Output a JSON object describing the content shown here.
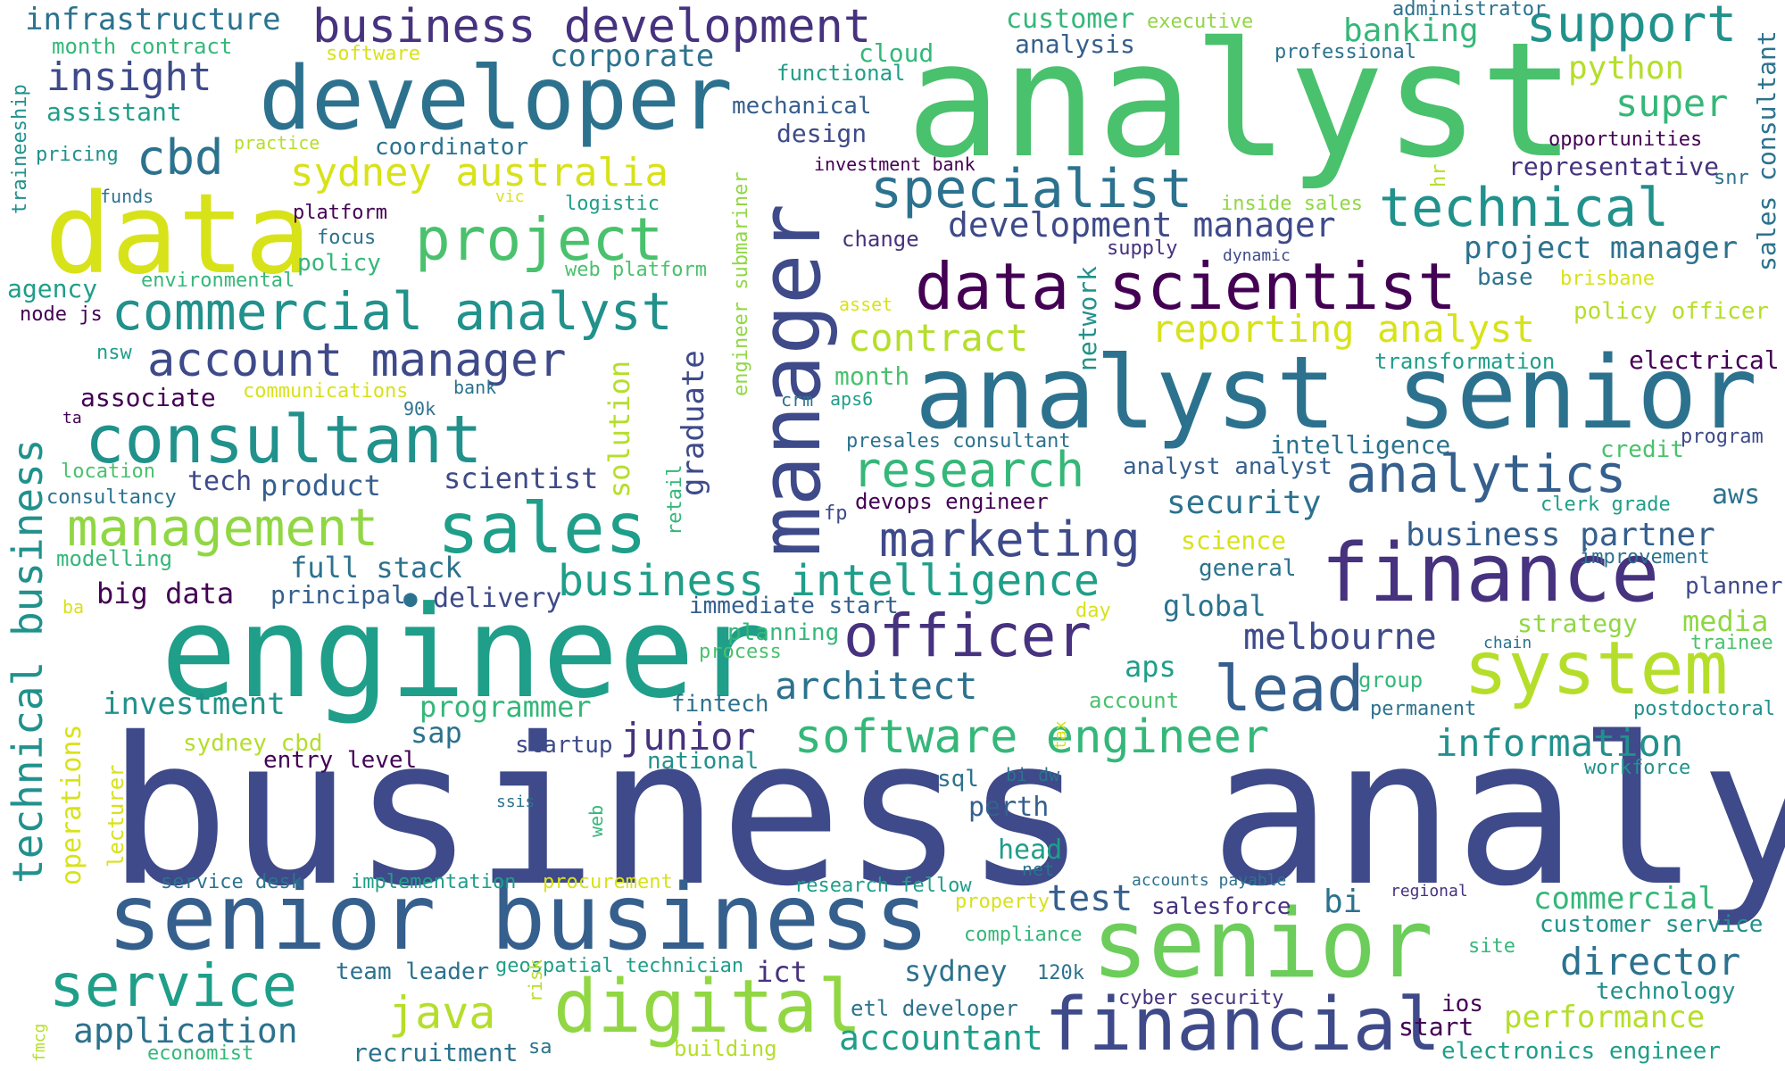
{
  "palette": {
    "purple": "#440154",
    "indigo": "#46327e",
    "navy": "#3e4a89",
    "blue": "#355f8d",
    "steel": "#2c728e",
    "teal": "#21918c",
    "sea": "#1f9e89",
    "green": "#35b779",
    "leaf": "#4ac16d",
    "lime": "#90d743",
    "chartreuse": "#b5de2b",
    "yellow": "#d8e219"
  },
  "words": [
    {
      "key": "w1",
      "text": "business analyst",
      "color": "#3e4a89"
    },
    {
      "key": "w2",
      "text": "analyst",
      "color": "#4ac16d"
    },
    {
      "key": "w3",
      "text": "engineer",
      "color": "#1f9e89"
    },
    {
      "key": "w4",
      "text": "senior business",
      "color": "#355f8d"
    },
    {
      "key": "w5",
      "text": "analyst senior",
      "color": "#2c728e"
    },
    {
      "key": "w6",
      "text": "developer",
      "color": "#2c728e"
    },
    {
      "key": "w7",
      "text": "manager",
      "color": "#3e4a89"
    },
    {
      "key": "w8",
      "text": "data",
      "color": "#d8e219"
    },
    {
      "key": "w9",
      "text": "senior",
      "color": "#6ccd5a"
    },
    {
      "key": "w10",
      "text": "finance",
      "color": "#46327e"
    },
    {
      "key": "w11",
      "text": "data scientist",
      "color": "#440154"
    },
    {
      "key": "w12",
      "text": "financial",
      "color": "#3e4a89"
    },
    {
      "key": "w13",
      "text": "system",
      "color": "#b5de2b"
    },
    {
      "key": "w14",
      "text": "digital",
      "color": "#90d743"
    },
    {
      "key": "w15",
      "text": "service",
      "color": "#1f9e89"
    },
    {
      "key": "w16",
      "text": "sales",
      "color": "#1f9e89"
    },
    {
      "key": "w17",
      "text": "consultant",
      "color": "#21918c"
    },
    {
      "key": "w18",
      "text": "business development",
      "color": "#46327e"
    },
    {
      "key": "w19",
      "text": "project",
      "color": "#4ac16d"
    },
    {
      "key": "w20",
      "text": "commercial analyst",
      "color": "#21918c"
    },
    {
      "key": "w21",
      "text": "management",
      "color": "#90d743"
    },
    {
      "key": "w22",
      "text": "officer",
      "color": "#46327e"
    },
    {
      "key": "w23",
      "text": "lead",
      "color": "#355f8d"
    },
    {
      "key": "w24",
      "text": "technical",
      "color": "#21918c"
    },
    {
      "key": "w25",
      "text": "support",
      "color": "#21918c"
    },
    {
      "key": "w26",
      "text": "specialist",
      "color": "#2c728e"
    },
    {
      "key": "w27",
      "text": "analytics",
      "color": "#355f8d"
    },
    {
      "key": "w28",
      "text": "marketing",
      "color": "#3e4a89"
    },
    {
      "key": "w29",
      "text": "business intelligence",
      "color": "#1f9e89"
    },
    {
      "key": "w30",
      "text": "research",
      "color": "#35b779"
    },
    {
      "key": "w31",
      "text": "software engineer",
      "color": "#35b779"
    },
    {
      "key": "w32",
      "text": "technical business",
      "color": "#21918c"
    },
    {
      "key": "w33",
      "text": "account manager",
      "color": "#3e4a89"
    },
    {
      "key": "w34",
      "text": "cbd",
      "color": "#2c728e"
    },
    {
      "key": "w35",
      "text": "insight",
      "color": "#3e4a89"
    },
    {
      "key": "w36",
      "text": "sydney australia",
      "color": "#d8e219"
    },
    {
      "key": "w37",
      "text": "reporting analyst",
      "color": "#d8e219"
    },
    {
      "key": "w38",
      "text": "contract",
      "color": "#b5de2b"
    },
    {
      "key": "w39",
      "text": "development manager",
      "color": "#3e4a89"
    },
    {
      "key": "w40",
      "text": "information",
      "color": "#21918c"
    },
    {
      "key": "w41",
      "text": "architect",
      "color": "#2c728e"
    },
    {
      "key": "w42",
      "text": "melbourne",
      "color": "#3e4a89"
    },
    {
      "key": "w43",
      "text": "director",
      "color": "#2c728e"
    },
    {
      "key": "w44",
      "text": "accountant",
      "color": "#1f9e89"
    },
    {
      "key": "w45",
      "text": "java",
      "color": "#b5de2b"
    },
    {
      "key": "w46",
      "text": "junior",
      "color": "#46327e"
    },
    {
      "key": "w47",
      "text": "application",
      "color": "#2c728e"
    },
    {
      "key": "w48",
      "text": "commercial",
      "color": "#35b779"
    },
    {
      "key": "w49",
      "text": "performance",
      "color": "#b5de2b"
    },
    {
      "key": "w50",
      "text": "security",
      "color": "#2c728e"
    },
    {
      "key": "w51",
      "text": "business partner",
      "color": "#355f8d"
    },
    {
      "key": "w52",
      "text": "project manager",
      "color": "#2c728e"
    },
    {
      "key": "w53",
      "text": "super",
      "color": "#35b779"
    },
    {
      "key": "w54",
      "text": "python",
      "color": "#b5de2b"
    },
    {
      "key": "w55",
      "text": "banking",
      "color": "#35b779"
    },
    {
      "key": "w56",
      "text": "corporate",
      "color": "#2c728e"
    },
    {
      "key": "w57",
      "text": "infrastructure",
      "color": "#2c728e"
    },
    {
      "key": "w58",
      "text": "investment",
      "color": "#21918c"
    },
    {
      "key": "w59",
      "text": "programmer",
      "color": "#35b779"
    },
    {
      "key": "w60",
      "text": "full stack",
      "color": "#2c728e"
    },
    {
      "key": "w61",
      "text": "big data",
      "color": "#440154"
    },
    {
      "key": "w62",
      "text": "delivery",
      "color": "#3e4a89"
    },
    {
      "key": "w63",
      "text": "principal",
      "color": "#355f8d"
    },
    {
      "key": "w64",
      "text": "product",
      "color": "#355f8d"
    },
    {
      "key": "w65",
      "text": "scientist",
      "color": "#3e4a89"
    },
    {
      "key": "w66",
      "text": "tech",
      "color": "#3e4a89"
    },
    {
      "key": "w67",
      "text": "sap",
      "color": "#2c728e"
    },
    {
      "key": "w68",
      "text": "aps",
      "color": "#1f9e89"
    },
    {
      "key": "w69",
      "text": "global",
      "color": "#2c728e"
    },
    {
      "key": "w70",
      "text": "media",
      "color": "#90d743"
    },
    {
      "key": "w71",
      "text": "strategy",
      "color": "#90d743"
    },
    {
      "key": "w72",
      "text": "test",
      "color": "#355f8d"
    },
    {
      "key": "w73",
      "text": "bi",
      "color": "#2c728e"
    },
    {
      "key": "w74",
      "text": "ict",
      "color": "#46327e"
    },
    {
      "key": "w75",
      "text": "sydney",
      "color": "#2c728e"
    },
    {
      "key": "w76",
      "text": "team leader",
      "color": "#2c728e"
    },
    {
      "key": "w77",
      "text": "recruitment",
      "color": "#2c728e"
    },
    {
      "key": "w78",
      "text": "head",
      "color": "#1f9e89"
    },
    {
      "key": "w79",
      "text": "perth",
      "color": "#355f8d"
    },
    {
      "key": "w80",
      "text": "sql",
      "color": "#2c728e"
    },
    {
      "key": "w81",
      "text": "startup",
      "color": "#3e4a89"
    },
    {
      "key": "w82",
      "text": "national",
      "color": "#21918c"
    },
    {
      "key": "w83",
      "text": "entry level",
      "color": "#440154"
    },
    {
      "key": "w84",
      "text": "sydney cbd",
      "color": "#b5de2b"
    },
    {
      "key": "w85",
      "text": "fintech",
      "color": "#2c728e"
    },
    {
      "key": "w86",
      "text": "planning",
      "color": "#35b779"
    },
    {
      "key": "w87",
      "text": "immediate start",
      "color": "#355f8d"
    },
    {
      "key": "w88",
      "text": "process",
      "color": "#4ac16d"
    },
    {
      "key": "w89",
      "text": "science",
      "color": "#d8e219"
    },
    {
      "key": "w90",
      "text": "general",
      "color": "#2c728e"
    },
    {
      "key": "w91",
      "text": "aws",
      "color": "#2c728e"
    },
    {
      "key": "w92",
      "text": "clerk grade",
      "color": "#1f9e89"
    },
    {
      "key": "w93",
      "text": "improvement",
      "color": "#2c728e"
    },
    {
      "key": "w94",
      "text": "planner",
      "color": "#3e4a89"
    },
    {
      "key": "w95",
      "text": "chain",
      "color": "#2c728e"
    },
    {
      "key": "w96",
      "text": "trainee",
      "color": "#4ac16d"
    },
    {
      "key": "w97",
      "text": "credit",
      "color": "#4ac16d"
    },
    {
      "key": "w98",
      "text": "program",
      "color": "#3e4a89"
    },
    {
      "key": "w99",
      "text": "intelligence",
      "color": "#2c728e"
    },
    {
      "key": "w100",
      "text": "analyst analyst",
      "color": "#355f8d"
    },
    {
      "key": "w101",
      "text": "presales consultant",
      "color": "#2c728e"
    },
    {
      "key": "w102",
      "text": "devops engineer",
      "color": "#440154"
    },
    {
      "key": "w103",
      "text": "fp",
      "color": "#3e4a89"
    },
    {
      "key": "w104",
      "text": "electrical",
      "color": "#440154"
    },
    {
      "key": "w105",
      "text": "transformation",
      "color": "#1f9e89"
    },
    {
      "key": "w106",
      "text": "policy officer",
      "color": "#b5de2b"
    },
    {
      "key": "w107",
      "text": "brisbane",
      "color": "#d8e219"
    },
    {
      "key": "w108",
      "text": "base",
      "color": "#2c728e"
    },
    {
      "key": "w109",
      "text": "representative",
      "color": "#46327e"
    },
    {
      "key": "w110",
      "text": "opportunities",
      "color": "#440154"
    },
    {
      "key": "w111",
      "text": "snr",
      "color": "#2c728e"
    },
    {
      "key": "w112",
      "text": "sales consultant",
      "color": "#2c728e"
    },
    {
      "key": "w113",
      "text": "inside sales",
      "color": "#90d743"
    },
    {
      "key": "w114",
      "text": "supply",
      "color": "#46327e"
    },
    {
      "key": "w115",
      "text": "dynamic",
      "color": "#3e4a89"
    },
    {
      "key": "w116",
      "text": "hr",
      "color": "#b5de2b"
    },
    {
      "key": "w117",
      "text": "professional",
      "color": "#2c728e"
    },
    {
      "key": "w118",
      "text": "administrator",
      "color": "#2c728e"
    },
    {
      "key": "w119",
      "text": "analysis",
      "color": "#355f8d"
    },
    {
      "key": "w120",
      "text": "customer",
      "color": "#35b779"
    },
    {
      "key": "w121",
      "text": "executive",
      "color": "#90d743"
    },
    {
      "key": "w122",
      "text": "cloud",
      "color": "#35b779"
    },
    {
      "key": "w123",
      "text": "functional",
      "color": "#1f9e89"
    },
    {
      "key": "w124",
      "text": "mechanical",
      "color": "#355f8d"
    },
    {
      "key": "w125",
      "text": "design",
      "color": "#3e4a89"
    },
    {
      "key": "w126",
      "text": "investment bank",
      "color": "#440154"
    },
    {
      "key": "w127",
      "text": "change",
      "color": "#46327e"
    },
    {
      "key": "w128",
      "text": "asset",
      "color": "#d8e219"
    },
    {
      "key": "w129",
      "text": "month",
      "color": "#4ac16d"
    },
    {
      "key": "w130",
      "text": "aps6",
      "color": "#1f9e89"
    },
    {
      "key": "w131",
      "text": "crm",
      "color": "#2c728e"
    },
    {
      "key": "w132",
      "text": "software",
      "color": "#d8e219"
    },
    {
      "key": "w133",
      "text": "month contract",
      "color": "#35b779"
    },
    {
      "key": "w134",
      "text": "assistant",
      "color": "#1f9e89"
    },
    {
      "key": "w135",
      "text": "pricing",
      "color": "#21918c"
    },
    {
      "key": "w136",
      "text": "practice",
      "color": "#b5de2b"
    },
    {
      "key": "w137",
      "text": "coordinator",
      "color": "#2c728e"
    },
    {
      "key": "w138",
      "text": "funds",
      "color": "#2c728e"
    },
    {
      "key": "w139",
      "text": "platform",
      "color": "#440154"
    },
    {
      "key": "w140",
      "text": "vic",
      "color": "#d8e219"
    },
    {
      "key": "w141",
      "text": "logistic",
      "color": "#1f9e89"
    },
    {
      "key": "w142",
      "text": "focus",
      "color": "#2c728e"
    },
    {
      "key": "w143",
      "text": "policy",
      "color": "#35b779"
    },
    {
      "key": "w144",
      "text": "environmental",
      "color": "#35b779"
    },
    {
      "key": "w145",
      "text": "web platform",
      "color": "#4ac16d"
    },
    {
      "key": "w146",
      "text": "agency",
      "color": "#1f9e89"
    },
    {
      "key": "w147",
      "text": "node js",
      "color": "#440154"
    },
    {
      "key": "w148",
      "text": "nsw",
      "color": "#1f9e89"
    },
    {
      "key": "w149",
      "text": "associate",
      "color": "#440154"
    },
    {
      "key": "w150",
      "text": "communications",
      "color": "#d8e219"
    },
    {
      "key": "w151",
      "text": "90k",
      "color": "#2c728e"
    },
    {
      "key": "w152",
      "text": "bank",
      "color": "#2c728e"
    },
    {
      "key": "w153",
      "text": "ta",
      "color": "#440154"
    },
    {
      "key": "w154",
      "text": "location",
      "color": "#4ac16d"
    },
    {
      "key": "w155",
      "text": "consultancy",
      "color": "#2c728e"
    },
    {
      "key": "w156",
      "text": "modelling",
      "color": "#35b779"
    },
    {
      "key": "w157",
      "text": "ba",
      "color": "#d8e219"
    },
    {
      "key": "w158",
      "text": "service desk",
      "color": "#2c728e"
    },
    {
      "key": "w159",
      "text": "implementation",
      "color": "#1f9e89"
    },
    {
      "key": "w160",
      "text": "procurement",
      "color": "#d8e219"
    },
    {
      "key": "w161",
      "text": "research fellow",
      "color": "#1f9e89"
    },
    {
      "key": "w162",
      "text": "property",
      "color": "#d8e219"
    },
    {
      "key": "w163",
      "text": "compliance",
      "color": "#35b779"
    },
    {
      "key": "w164",
      "text": "net",
      "color": "#2c728e"
    },
    {
      "key": "w165",
      "text": "bi dw",
      "color": "#2c728e"
    },
    {
      "key": "w166",
      "text": "ssis",
      "color": "#2c728e"
    },
    {
      "key": "w167",
      "text": "accounts payable",
      "color": "#2c728e"
    },
    {
      "key": "w168",
      "text": "salesforce",
      "color": "#46327e"
    },
    {
      "key": "w169",
      "text": "regional",
      "color": "#46327e"
    },
    {
      "key": "w170",
      "text": "customer service",
      "color": "#21918c"
    },
    {
      "key": "w171",
      "text": "site",
      "color": "#35b779"
    },
    {
      "key": "w172",
      "text": "technology",
      "color": "#21918c"
    },
    {
      "key": "w173",
      "text": "ios",
      "color": "#440154"
    },
    {
      "key": "w174",
      "text": "start",
      "color": "#440154"
    },
    {
      "key": "w175",
      "text": "electronics engineer",
      "color": "#1f9e89"
    },
    {
      "key": "w176",
      "text": "cyber security",
      "color": "#46327e"
    },
    {
      "key": "w177",
      "text": "etl developer",
      "color": "#2c728e"
    },
    {
      "key": "w178",
      "text": "120k",
      "color": "#2c728e"
    },
    {
      "key": "w179",
      "text": "geospatial technician",
      "color": "#1f9e89"
    },
    {
      "key": "w180",
      "text": "economist",
      "color": "#35b779"
    },
    {
      "key": "w181",
      "text": "sa",
      "color": "#2c728e"
    },
    {
      "key": "w182",
      "text": "building",
      "color": "#b5de2b"
    },
    {
      "key": "w183",
      "text": "group",
      "color": "#35b779"
    },
    {
      "key": "w184",
      "text": "permanent",
      "color": "#2c728e"
    },
    {
      "key": "w185",
      "text": "postdoctoral",
      "color": "#21918c"
    },
    {
      "key": "w186",
      "text": "workforce",
      "color": "#21918c"
    },
    {
      "key": "w187",
      "text": "account",
      "color": "#4ac16d"
    },
    {
      "key": "w188",
      "text": "day",
      "color": "#d8e219"
    },
    {
      "key": "w189",
      "text": "operations",
      "color": "#d8e219"
    },
    {
      "key": "w190",
      "text": "lecturer",
      "color": "#d8e219"
    },
    {
      "key": "w191",
      "text": "fmcg",
      "color": "#b5de2b"
    },
    {
      "key": "w192",
      "text": "traineeship",
      "color": "#21918c"
    },
    {
      "key": "w193",
      "text": "solution",
      "color": "#b5de2b"
    },
    {
      "key": "w194",
      "text": "graduate",
      "color": "#3e4a89"
    },
    {
      "key": "w195",
      "text": "retail",
      "color": "#35b779"
    },
    {
      "key": "w196",
      "text": "engineer submariner",
      "color": "#90d743"
    },
    {
      "key": "w197",
      "text": "network",
      "color": "#21918c"
    },
    {
      "key": "w198",
      "text": "risk",
      "color": "#b5de2b"
    },
    {
      "key": "w199",
      "text": "web",
      "color": "#35b779"
    },
    {
      "key": "w200",
      "text": "tax",
      "color": "#d8e219"
    },
    {
      "key": "w201",
      "text": "",
      "color": "#2c728e"
    }
  ]
}
